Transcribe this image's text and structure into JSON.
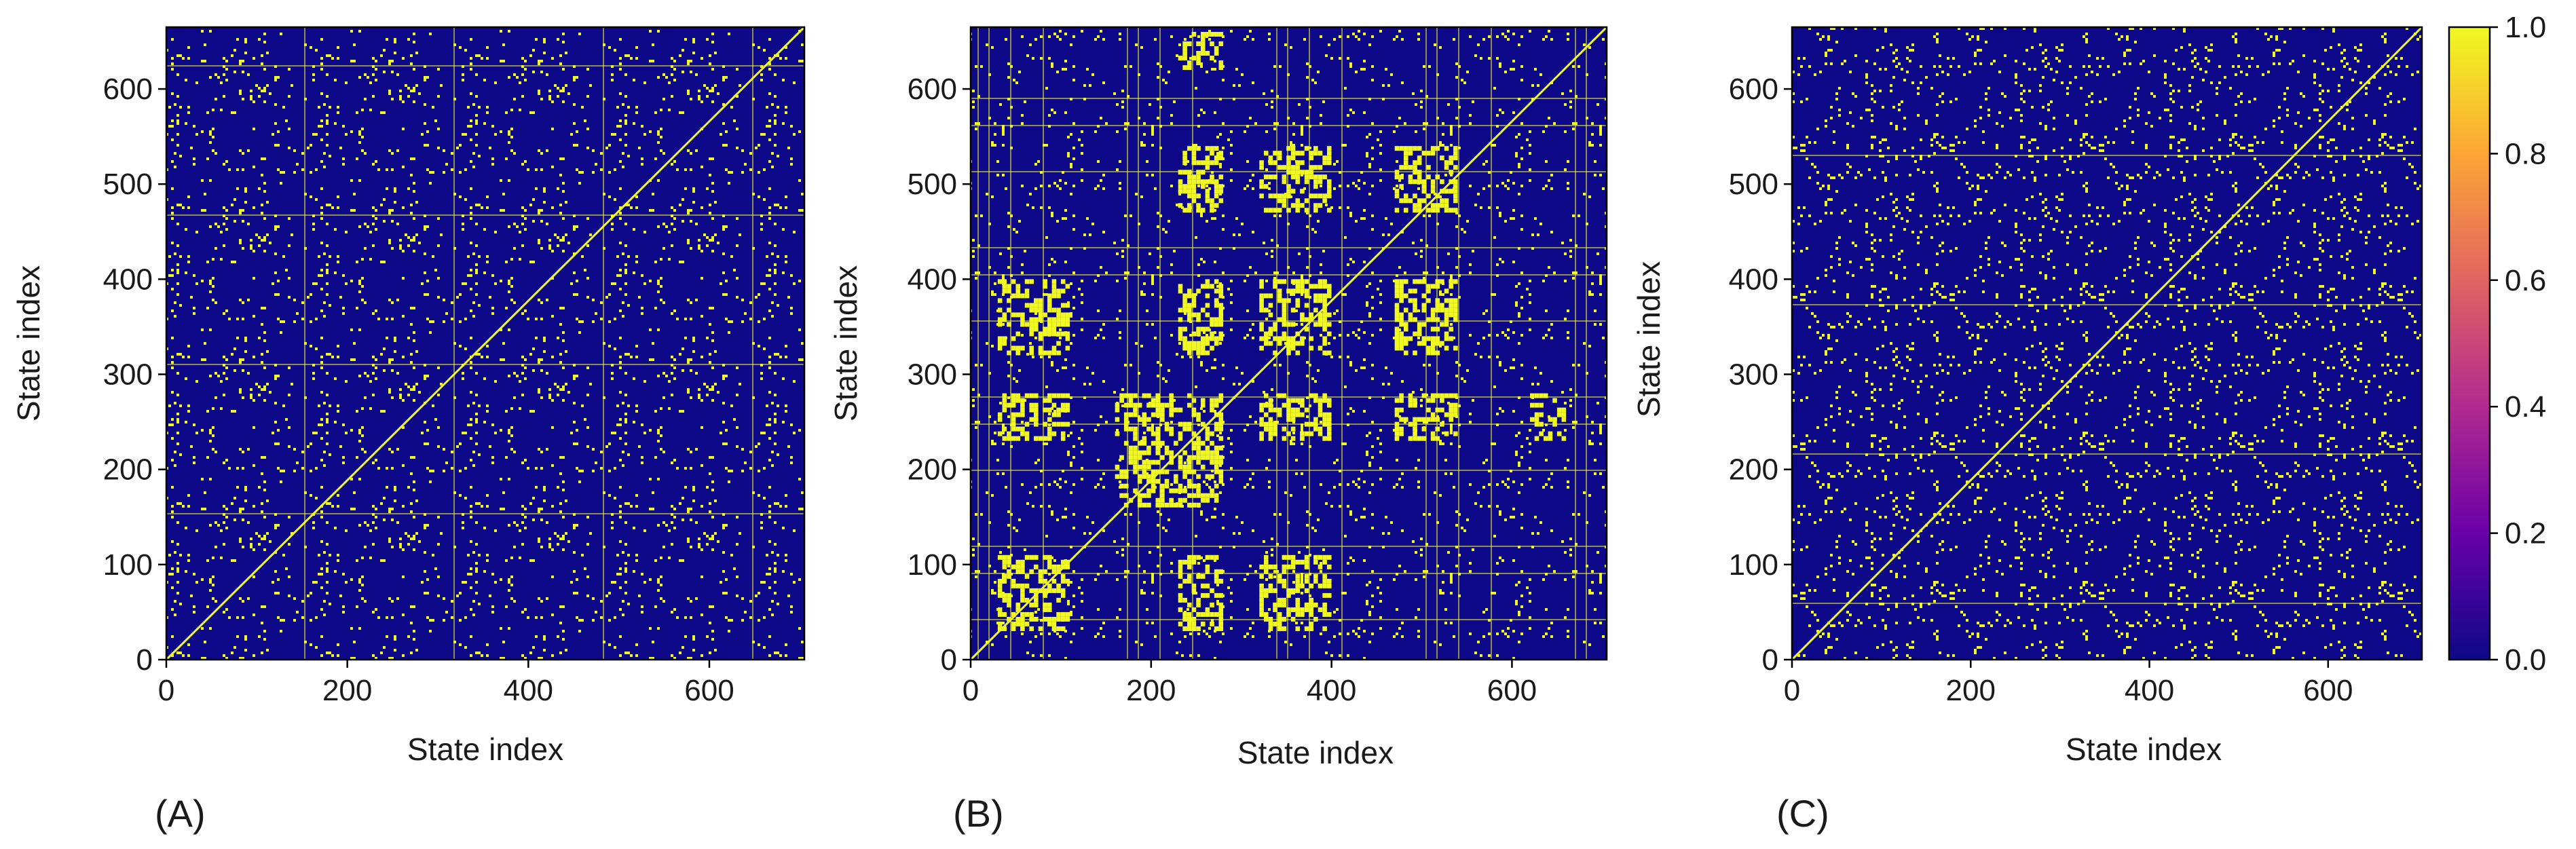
{
  "chart_data": [
    {
      "type": "heatmap",
      "panel_label": "(A)",
      "xlabel": "State index",
      "ylabel": "State index",
      "xlim": [
        0,
        705
      ],
      "ylim": [
        0,
        665
      ],
      "xticks": [
        0,
        200,
        400,
        600
      ],
      "yticks": [
        0,
        100,
        200,
        300,
        400,
        500,
        600
      ],
      "xtick_labels": [
        "0",
        "200",
        "400",
        "600"
      ],
      "ytick_labels": [
        "0",
        "100",
        "200",
        "300",
        "400",
        "500",
        "600"
      ],
      "values": "binary recurrence matrix (0.0 or 1.0); sparse, scattered 1.0 entries with a full diagonal",
      "colormap": "plasma"
    },
    {
      "type": "heatmap",
      "panel_label": "(B)",
      "xlabel": "State index",
      "ylabel": "State index",
      "xlim": [
        0,
        705
      ],
      "ylim": [
        0,
        665
      ],
      "xticks": [
        0,
        200,
        400,
        600
      ],
      "yticks": [
        0,
        100,
        200,
        300,
        400,
        500,
        600
      ],
      "xtick_labels": [
        "0",
        "200",
        "400",
        "600"
      ],
      "ytick_labels": [
        "0",
        "100",
        "200",
        "300",
        "400",
        "500",
        "600"
      ],
      "values": "binary recurrence matrix (0.0 or 1.0); blocky clusters of 1.0 around states 30-110, 160-280, 320-400, 480-540 with a full diagonal",
      "colormap": "plasma"
    },
    {
      "type": "heatmap",
      "panel_label": "(C)",
      "xlabel": "State index",
      "ylabel": "State index",
      "xlim": [
        0,
        705
      ],
      "ylim": [
        0,
        665
      ],
      "xticks": [
        0,
        200,
        400,
        600
      ],
      "yticks": [
        0,
        100,
        200,
        300,
        400,
        500,
        600
      ],
      "xtick_labels": [
        "0",
        "200",
        "400",
        "600"
      ],
      "ytick_labels": [
        "0",
        "100",
        "200",
        "300",
        "400",
        "500",
        "600"
      ],
      "values": "binary recurrence matrix (0.0 or 1.0); dense fine-grained 1.0 texture with a full diagonal",
      "colormap": "plasma"
    }
  ],
  "colorbar": {
    "range": [
      0.0,
      1.0
    ],
    "ticks": [
      0.0,
      0.2,
      0.4,
      0.6,
      0.8,
      1.0
    ],
    "tick_labels": [
      "0.0",
      "0.2",
      "0.4",
      "0.6",
      "0.8",
      "1.0"
    ],
    "colormap": "plasma"
  },
  "colors": {
    "background": "#0d0887",
    "foreground": "#f0f921",
    "cmap_stops": [
      "#0d0887",
      "#6a00a8",
      "#b12a90",
      "#e16462",
      "#fca636",
      "#f0f921"
    ]
  }
}
